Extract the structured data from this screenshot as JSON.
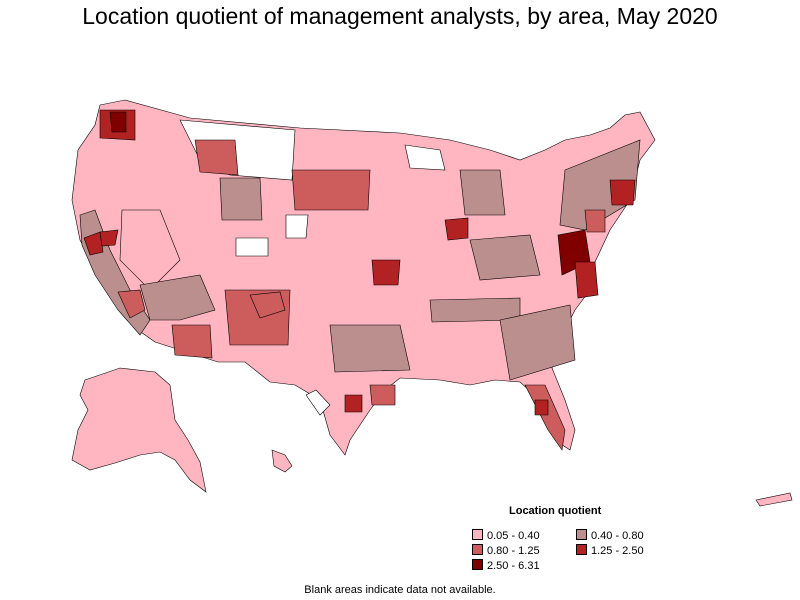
{
  "title": "Location quotient of management analysts, by area, May 2020",
  "legend": {
    "title": "Location quotient",
    "items": [
      {
        "label": "0.05 - 0.40",
        "color": "#ffb6c1"
      },
      {
        "label": "0.40 - 0.80",
        "color": "#bc8f8f"
      },
      {
        "label": "0.80 - 1.25",
        "color": "#cd5c5c"
      },
      {
        "label": "1.25 - 2.50",
        "color": "#b22222"
      },
      {
        "label": "2.50 - 6.31",
        "color": "#800000"
      }
    ]
  },
  "footnote": "Blank areas indicate data not available.",
  "colors": {
    "blank": "#ffffff",
    "border": "#000000"
  },
  "regions": [
    {
      "id": "us-mainland",
      "class": 0
    },
    {
      "id": "alaska",
      "class": 0
    },
    {
      "id": "hawaii",
      "class": 0
    },
    {
      "id": "puerto-rico",
      "class": 0
    },
    {
      "id": "west-texas-blank",
      "class": -1
    },
    {
      "id": "montana-blank",
      "class": -1
    },
    {
      "id": "colorado-blank",
      "class": -1
    },
    {
      "id": "nebraska-blank",
      "class": -1
    },
    {
      "id": "northern-mn-blank",
      "class": -1
    },
    {
      "id": "nevada-south",
      "class": 0
    },
    {
      "id": "california-coast",
      "class": 1
    },
    {
      "id": "bay-area",
      "class": 3
    },
    {
      "id": "sacramento",
      "class": 3
    },
    {
      "id": "socal",
      "class": 2
    },
    {
      "id": "arizona-south",
      "class": 2
    },
    {
      "id": "arizona-central",
      "class": 1
    },
    {
      "id": "new-mexico",
      "class": 2
    },
    {
      "id": "oklahoma",
      "class": 2
    },
    {
      "id": "north-dakota",
      "class": 2
    },
    {
      "id": "idaho-montana",
      "class": 2
    },
    {
      "id": "wyoming",
      "class": 1
    },
    {
      "id": "washington-west",
      "class": 3
    },
    {
      "id": "seattle",
      "class": 4
    },
    {
      "id": "kansas-city",
      "class": 3
    },
    {
      "id": "chicago",
      "class": 3
    },
    {
      "id": "michigan-area",
      "class": 1
    },
    {
      "id": "ohio-valley",
      "class": 1
    },
    {
      "id": "tennessee",
      "class": 1
    },
    {
      "id": "georgia-carolinas",
      "class": 1
    },
    {
      "id": "florida",
      "class": 2
    },
    {
      "id": "florida-tampa",
      "class": 3
    },
    {
      "id": "northeast",
      "class": 1
    },
    {
      "id": "boston",
      "class": 3
    },
    {
      "id": "dc-virginia",
      "class": 4
    },
    {
      "id": "virginia-south",
      "class": 3
    },
    {
      "id": "texas-east",
      "class": 1
    },
    {
      "id": "houston",
      "class": 2
    },
    {
      "id": "austin",
      "class": 3
    },
    {
      "id": "nyc-nj",
      "class": 2
    }
  ]
}
